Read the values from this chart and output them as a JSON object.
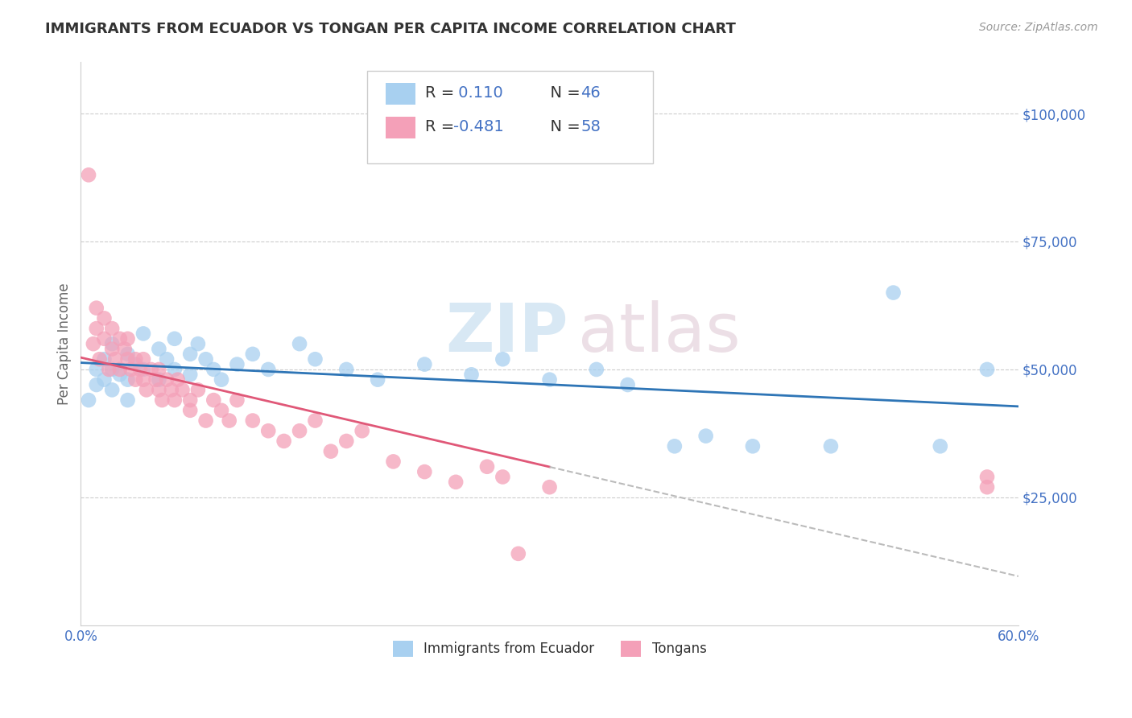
{
  "title": "IMMIGRANTS FROM ECUADOR VS TONGAN PER CAPITA INCOME CORRELATION CHART",
  "source": "Source: ZipAtlas.com",
  "ylabel": "Per Capita Income",
  "xlim": [
    0.0,
    0.6
  ],
  "ylim": [
    0,
    110000
  ],
  "yticks": [
    0,
    25000,
    50000,
    75000,
    100000
  ],
  "ytick_labels": [
    "",
    "$25,000",
    "$50,000",
    "$75,000",
    "$100,000"
  ],
  "xticks": [
    0.0,
    0.6
  ],
  "xtick_labels": [
    "0.0%",
    "60.0%"
  ],
  "ecuador": {
    "name": "Immigrants from Ecuador",
    "color": "#A8D0F0",
    "line_color": "#2E75B6",
    "R": 0.11,
    "N": 46,
    "x": [
      0.005,
      0.01,
      0.01,
      0.015,
      0.015,
      0.02,
      0.02,
      0.02,
      0.025,
      0.03,
      0.03,
      0.03,
      0.035,
      0.04,
      0.04,
      0.05,
      0.05,
      0.055,
      0.06,
      0.06,
      0.07,
      0.07,
      0.075,
      0.08,
      0.085,
      0.09,
      0.1,
      0.11,
      0.12,
      0.14,
      0.15,
      0.17,
      0.19,
      0.22,
      0.25,
      0.27,
      0.3,
      0.33,
      0.35,
      0.38,
      0.4,
      0.43,
      0.48,
      0.52,
      0.55,
      0.58
    ],
    "y": [
      44000,
      47000,
      50000,
      52000,
      48000,
      55000,
      50000,
      46000,
      49000,
      53000,
      48000,
      44000,
      51000,
      57000,
      50000,
      54000,
      48000,
      52000,
      56000,
      50000,
      53000,
      49000,
      55000,
      52000,
      50000,
      48000,
      51000,
      53000,
      50000,
      55000,
      52000,
      50000,
      48000,
      51000,
      49000,
      52000,
      48000,
      50000,
      47000,
      35000,
      37000,
      35000,
      35000,
      65000,
      35000,
      50000
    ]
  },
  "tongan": {
    "name": "Tongans",
    "color": "#F4A0B8",
    "line_color": "#E05878",
    "R": -0.481,
    "N": 58,
    "x": [
      0.005,
      0.008,
      0.01,
      0.01,
      0.012,
      0.015,
      0.015,
      0.018,
      0.02,
      0.02,
      0.022,
      0.025,
      0.025,
      0.028,
      0.03,
      0.03,
      0.032,
      0.035,
      0.035,
      0.038,
      0.04,
      0.04,
      0.042,
      0.045,
      0.048,
      0.05,
      0.05,
      0.052,
      0.055,
      0.058,
      0.06,
      0.062,
      0.065,
      0.07,
      0.07,
      0.075,
      0.08,
      0.085,
      0.09,
      0.095,
      0.1,
      0.11,
      0.12,
      0.13,
      0.14,
      0.15,
      0.16,
      0.17,
      0.18,
      0.2,
      0.22,
      0.24,
      0.26,
      0.27,
      0.28,
      0.3,
      0.58,
      0.58
    ],
    "y": [
      88000,
      55000,
      58000,
      62000,
      52000,
      56000,
      60000,
      50000,
      54000,
      58000,
      52000,
      56000,
      50000,
      54000,
      52000,
      56000,
      50000,
      52000,
      48000,
      50000,
      48000,
      52000,
      46000,
      50000,
      48000,
      46000,
      50000,
      44000,
      48000,
      46000,
      44000,
      48000,
      46000,
      44000,
      42000,
      46000,
      40000,
      44000,
      42000,
      40000,
      44000,
      40000,
      38000,
      36000,
      38000,
      40000,
      34000,
      36000,
      38000,
      32000,
      30000,
      28000,
      31000,
      29000,
      14000,
      27000,
      29000,
      27000
    ]
  },
  "watermark_zip": "ZIP",
  "watermark_atlas": "atlas",
  "background_color": "#ffffff",
  "grid_color": "#cccccc",
  "axis_color": "#4472C4",
  "title_color": "#333333",
  "ylabel_color": "#666666",
  "legend_text_color": "#4472C4",
  "legend_r_color": "#333333"
}
